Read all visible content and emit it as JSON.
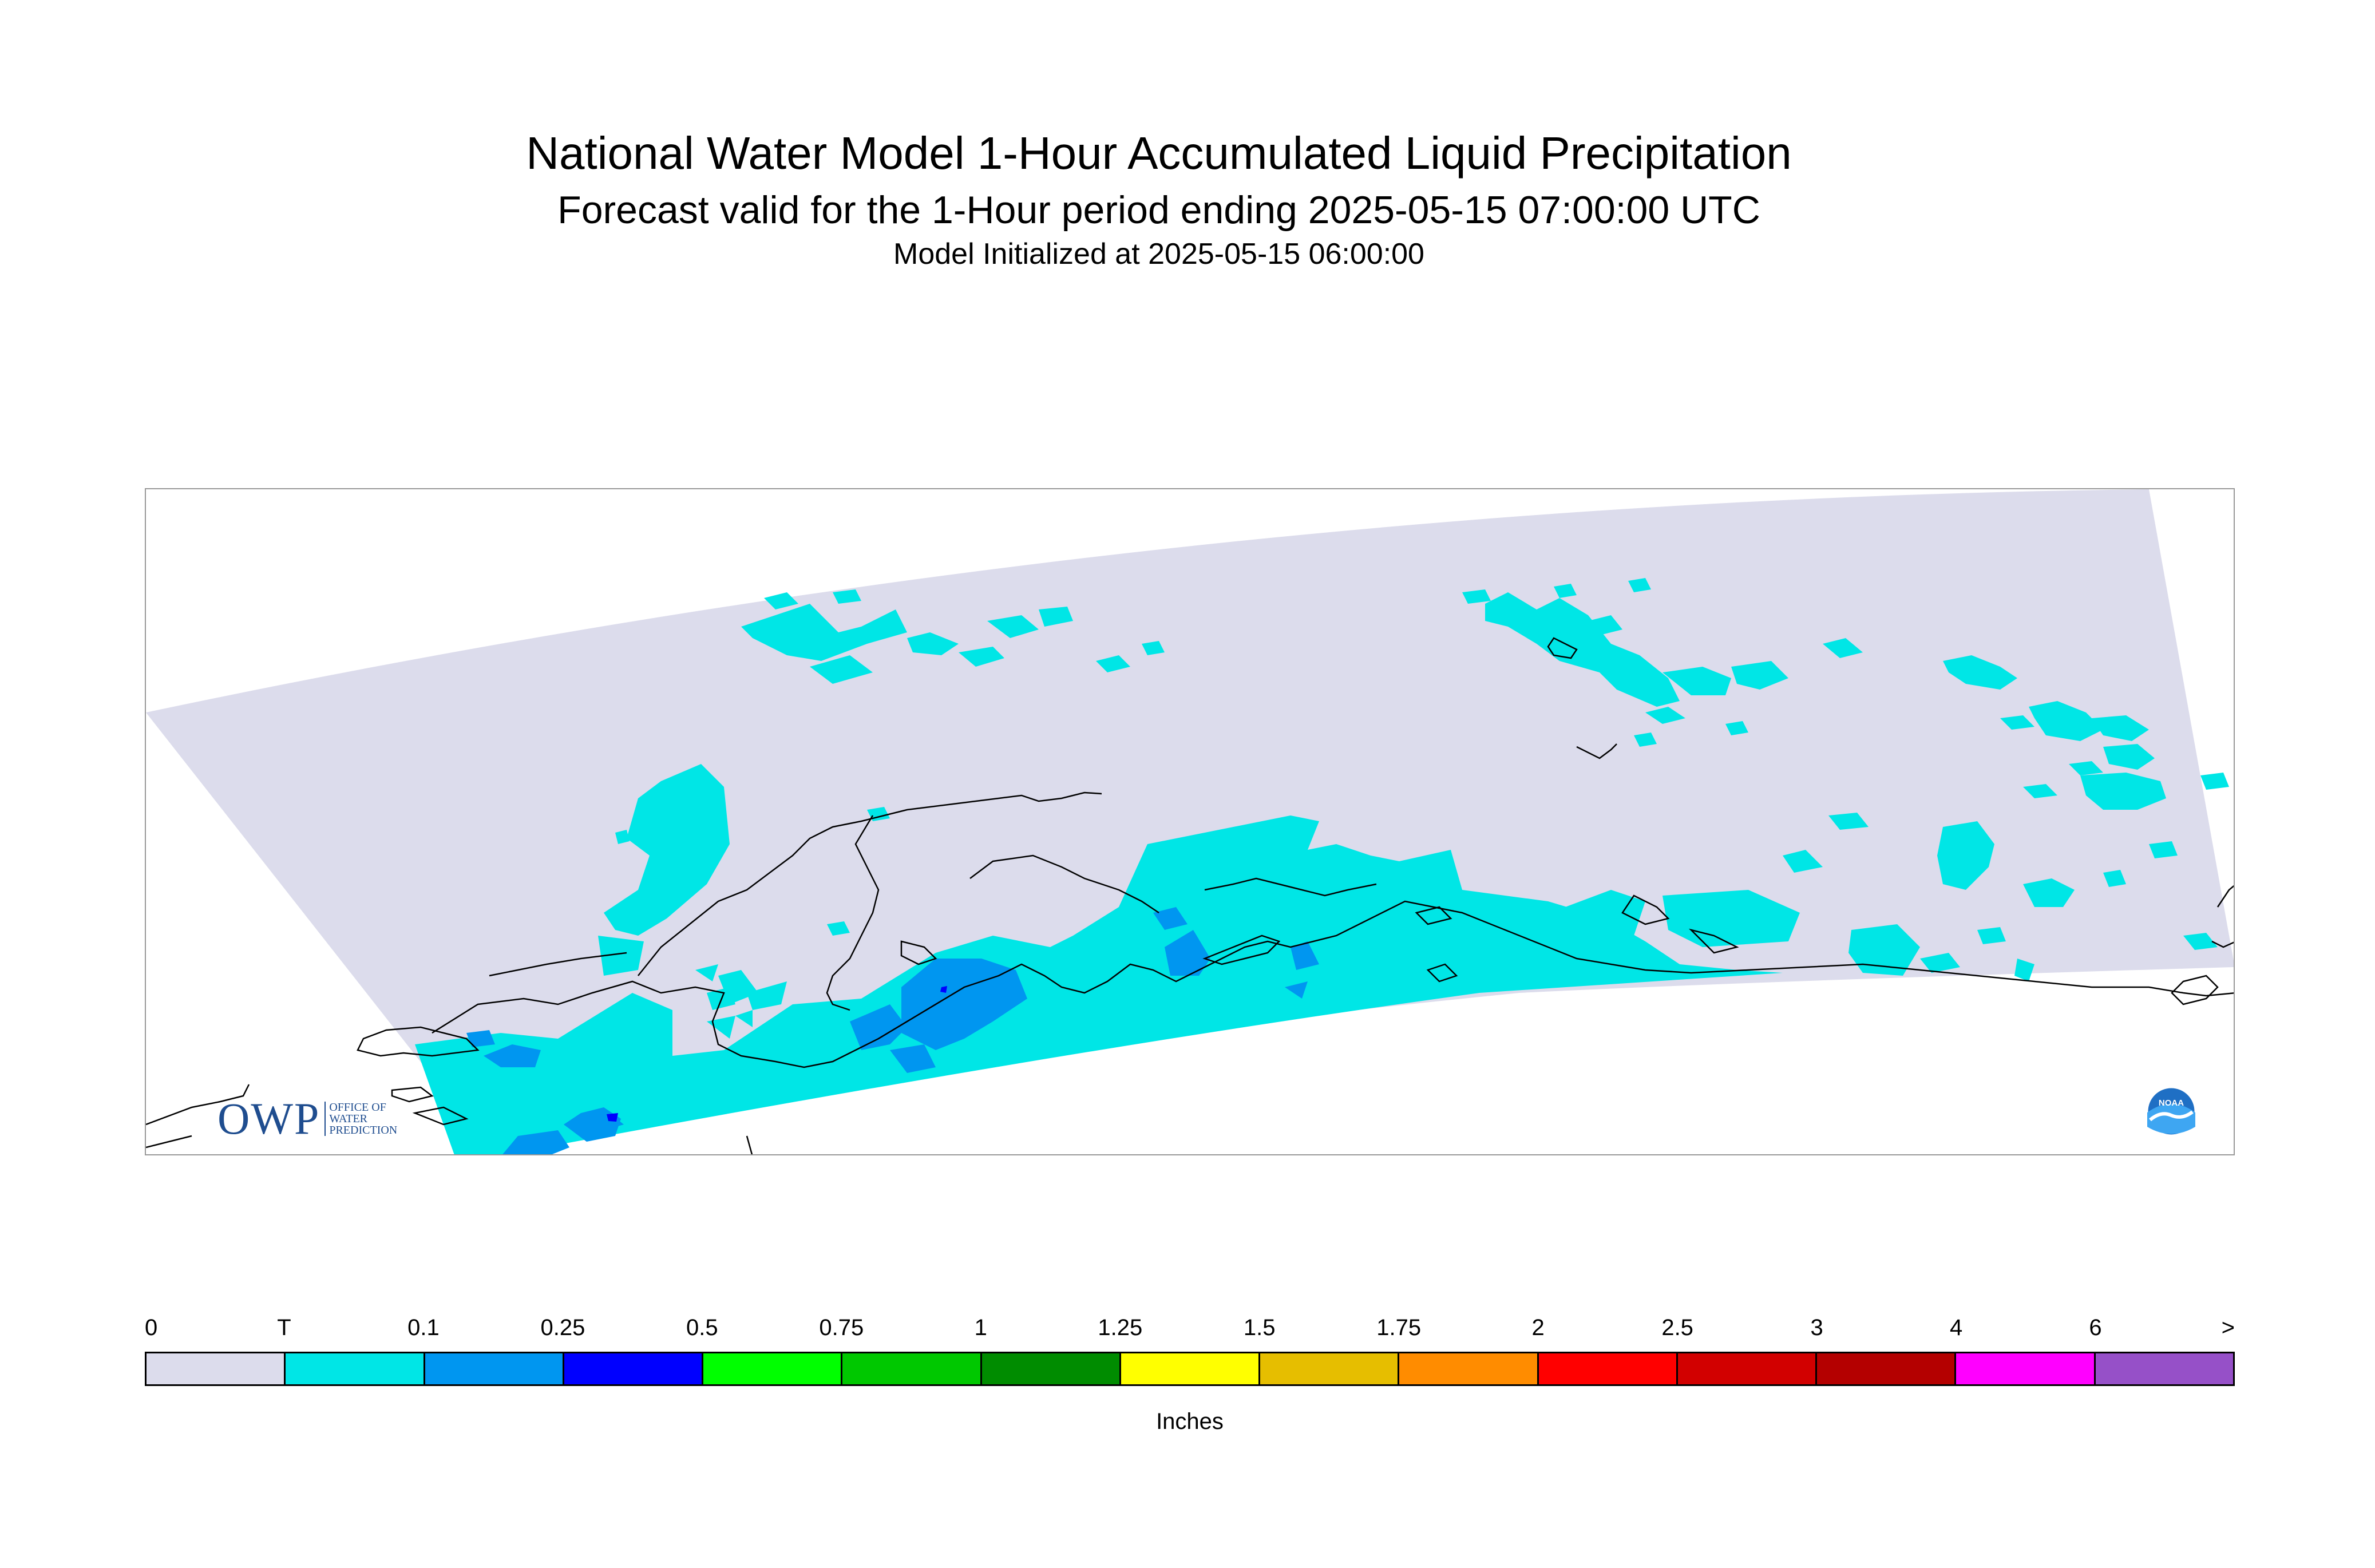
{
  "header": {
    "title": "National Water Model 1-Hour Accumulated Liquid Precipitation",
    "subtitle": "Forecast valid for the 1-Hour period ending 2025-05-15 07:00:00 UTC",
    "init_line": "Model Initialized at 2025-05-15 06:00:00"
  },
  "map": {
    "region": "Alaska",
    "logos": {
      "owp": {
        "letters": "OWP",
        "line1": "OFFICE OF",
        "line2": "WATER",
        "line3": "PREDICTION"
      },
      "noaa": {
        "text": "NOAA"
      }
    },
    "colors": {
      "domain_fill": "#dcdcec",
      "trace": "#00e6e6",
      "light_blue": "#0096f0",
      "dark_blue": "#0000ff",
      "coastline": "#000000"
    }
  },
  "legend": {
    "units": "Inches",
    "ticks": [
      "0",
      "T",
      "0.1",
      "0.25",
      "0.5",
      "0.75",
      "1",
      "1.25",
      "1.5",
      "1.75",
      "2",
      "2.5",
      "3",
      "4",
      "6",
      ">"
    ],
    "colors": [
      "#dcdcec",
      "#00e6e6",
      "#0096f0",
      "#0000ff",
      "#00ff00",
      "#00c800",
      "#008c00",
      "#ffff00",
      "#e6be00",
      "#ff8c00",
      "#ff0000",
      "#d20000",
      "#b40000",
      "#ff00ff",
      "#9650c8"
    ]
  }
}
